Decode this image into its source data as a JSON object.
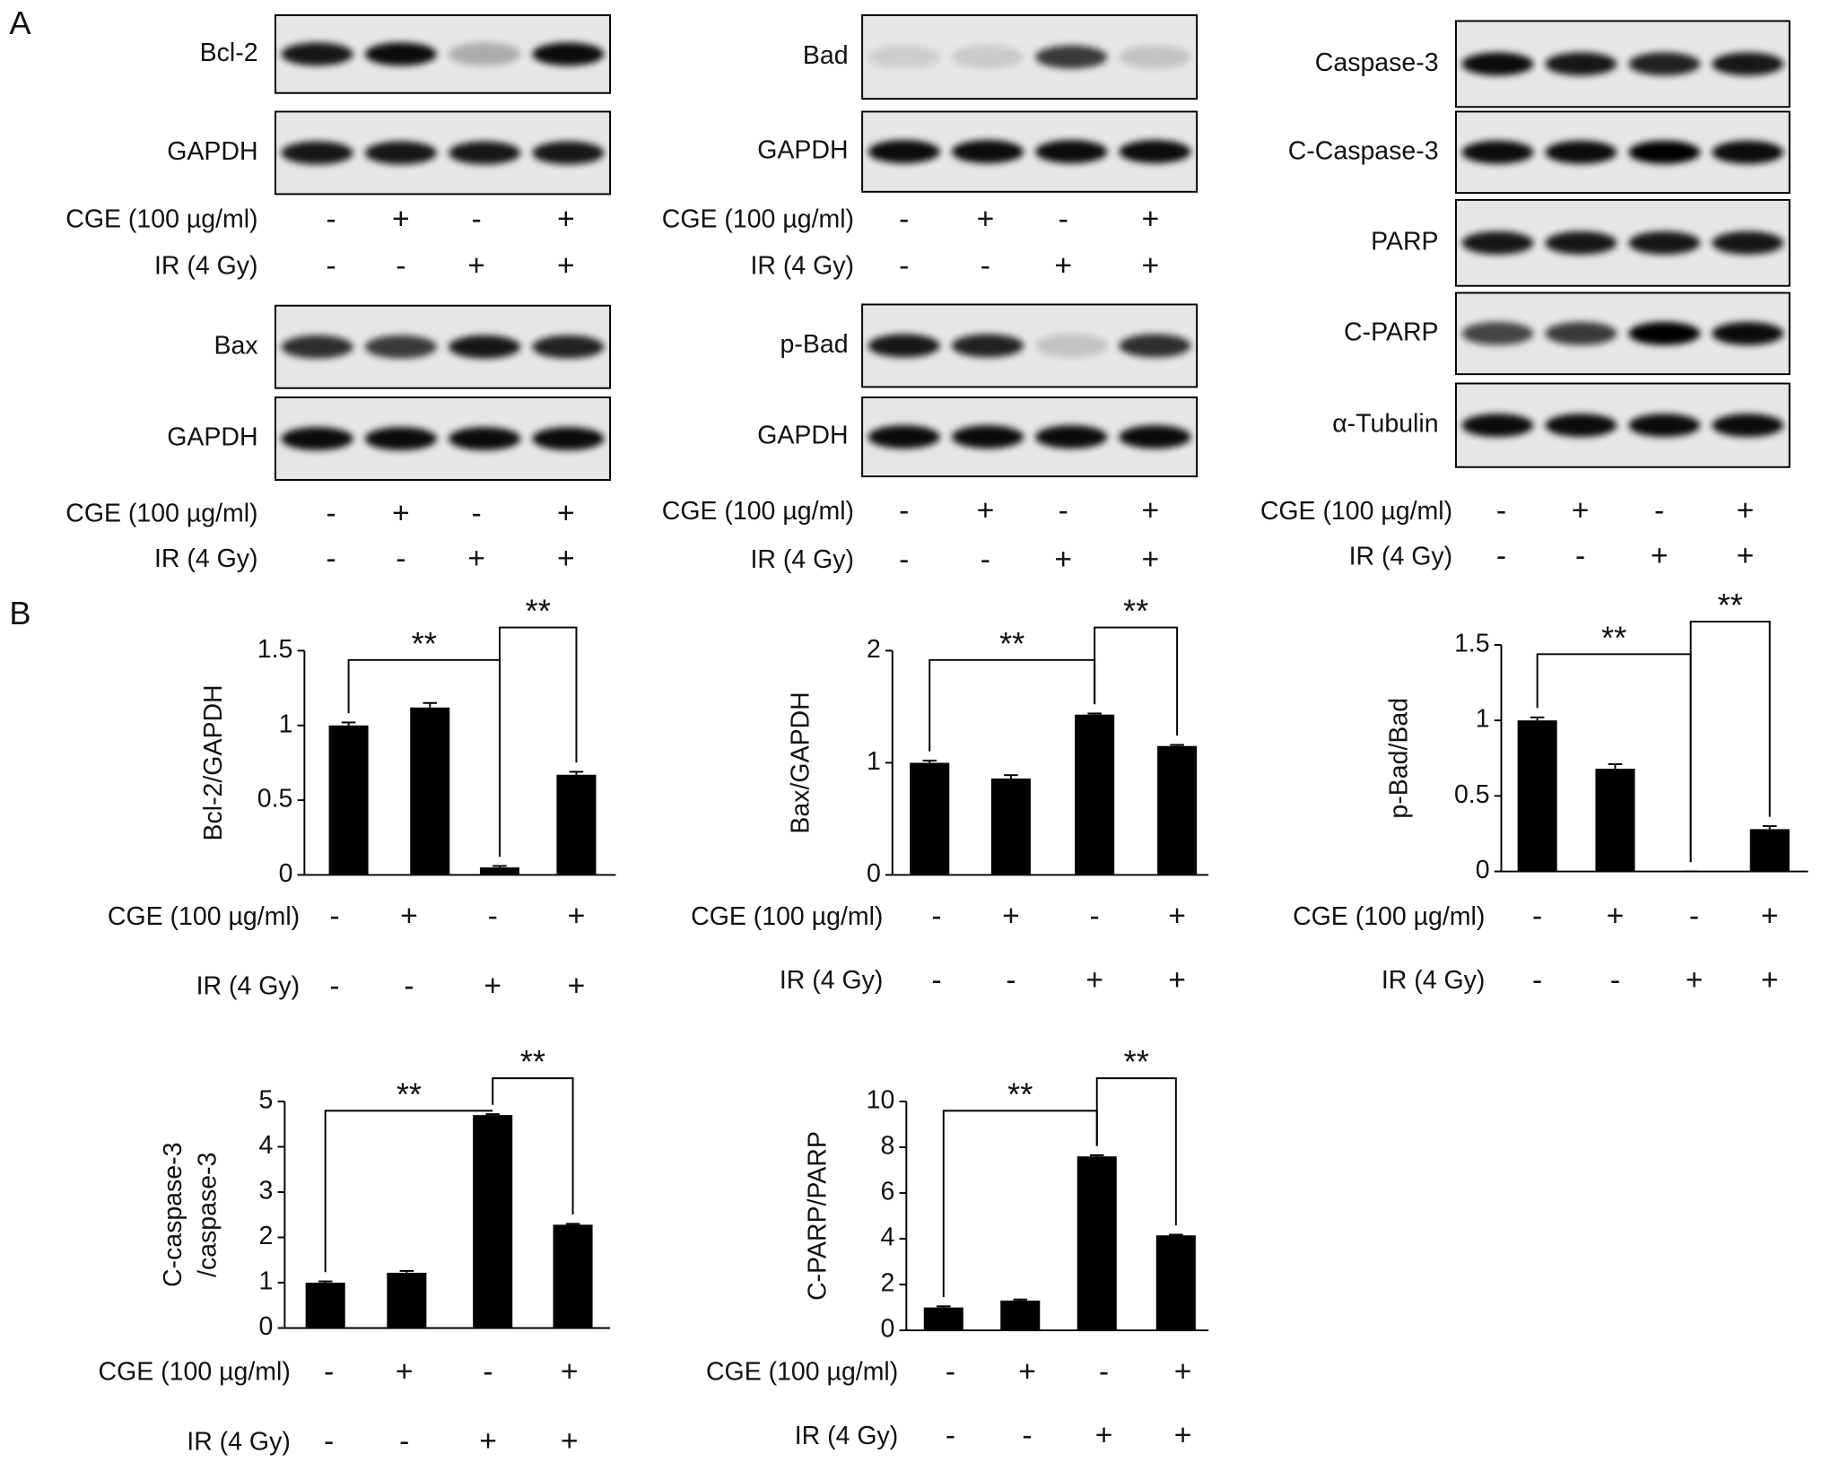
{
  "panel_labels": [
    "A",
    "B"
  ],
  "blot_groups": [
    {
      "bands": [
        "Bcl-2",
        "GAPDH"
      ],
      "treatments": [
        {
          "label": "CGE (100 µg/ml)",
          "signs": [
            "-",
            "+",
            "-",
            "+"
          ]
        },
        {
          "label": "IR (4 Gy)",
          "signs": [
            "-",
            "-",
            "+",
            "+"
          ]
        }
      ]
    },
    {
      "bands": [
        "Bax",
        "GAPDH"
      ],
      "treatments": [
        {
          "label": "CGE (100 µg/ml)",
          "signs": [
            "-",
            "+",
            "-",
            "+"
          ]
        },
        {
          "label": "IR (4 Gy)",
          "signs": [
            "-",
            "-",
            "+",
            "+"
          ]
        }
      ]
    },
    {
      "bands": [
        "Bad",
        "GAPDH"
      ],
      "treatments": [
        {
          "label": "CGE (100 µg/ml)",
          "signs": [
            "-",
            "+",
            "-",
            "+"
          ]
        },
        {
          "label": "IR (4 Gy)",
          "signs": [
            "-",
            "-",
            "+",
            "+"
          ]
        }
      ]
    },
    {
      "bands": [
        "p-Bad",
        "GAPDH"
      ],
      "treatments": [
        {
          "label": "CGE (100 µg/ml)",
          "signs": [
            "-",
            "+",
            "-",
            "+"
          ]
        },
        {
          "label": "IR (4 Gy)",
          "signs": [
            "-",
            "-",
            "+",
            "+"
          ]
        }
      ]
    },
    {
      "bands": [
        "Caspase-3",
        "C-Caspase-3",
        "PARP",
        "C-PARP",
        "α-Tubulin"
      ],
      "treatments": [
        {
          "label": "CGE (100 µg/ml)",
          "signs": [
            "-",
            "+",
            "-",
            "+"
          ]
        },
        {
          "label": "IR (4 Gy)",
          "signs": [
            "-",
            "-",
            "+",
            "+"
          ]
        }
      ]
    }
  ],
  "chart_data": [
    {
      "type": "bar",
      "y_label": "Bcl-2/GAPDH",
      "values": [
        1.0,
        1.12,
        0.05,
        0.67
      ],
      "errors": [
        0.02,
        0.03,
        0.01,
        0.02
      ],
      "color": "#000000",
      "ylim": [
        0,
        1.5
      ],
      "yticks": [
        0,
        0.5,
        1,
        1.5
      ],
      "annotations": [
        "**",
        "**"
      ],
      "treatments": [
        {
          "label": "CGE (100 µg/ml)",
          "signs": [
            "-",
            "+",
            "-",
            "+"
          ]
        },
        {
          "label": "IR (4 Gy)",
          "signs": [
            "-",
            "-",
            "+",
            "+"
          ]
        }
      ]
    },
    {
      "type": "bar",
      "y_label": "Bax/GAPDH",
      "values": [
        1.0,
        0.86,
        1.43,
        1.15
      ],
      "errors": [
        0.02,
        0.03,
        0.01,
        0.01
      ],
      "color": "#000000",
      "ylim": [
        0,
        2
      ],
      "yticks": [
        0,
        1,
        2
      ],
      "annotations": [
        "**",
        "**"
      ],
      "treatments": [
        {
          "label": "CGE (100 µg/ml)",
          "signs": [
            "-",
            "+",
            "-",
            "+"
          ]
        },
        {
          "label": "IR (4 Gy)",
          "signs": [
            "-",
            "-",
            "+",
            "+"
          ]
        }
      ]
    },
    {
      "type": "bar",
      "y_label": "p-Bad/Bad",
      "values": [
        1.0,
        0.68,
        0,
        0.28
      ],
      "errors": [
        0.02,
        0.03,
        0,
        0.02
      ],
      "color": "#000000",
      "ylim": [
        0,
        1.5
      ],
      "yticks": [
        0,
        0.5,
        1,
        1.5
      ],
      "annotations": [
        "**",
        "**"
      ],
      "treatments": [
        {
          "label": "CGE (100 µg/ml)",
          "signs": [
            "-",
            "+",
            "-",
            "+"
          ]
        },
        {
          "label": "IR (4 Gy)",
          "signs": [
            "-",
            "-",
            "+",
            "+"
          ]
        }
      ]
    },
    {
      "type": "bar",
      "y_label": [
        "C-caspase-3",
        "/caspase-3"
      ],
      "values": [
        1.0,
        1.22,
        4.7,
        2.28
      ],
      "errors": [
        0.03,
        0.04,
        0.02,
        0.02
      ],
      "color": "#000000",
      "ylim": [
        0,
        5
      ],
      "yticks": [
        0,
        1,
        2,
        3,
        4,
        5
      ],
      "annotations": [
        "**",
        "**"
      ],
      "treatments": [
        {
          "label": "CGE (100 µg/ml)",
          "signs": [
            "-",
            "+",
            "-",
            "+"
          ]
        },
        {
          "label": "IR (4 Gy)",
          "signs": [
            "-",
            "-",
            "+",
            "+"
          ]
        }
      ]
    },
    {
      "type": "bar",
      "y_label": "C-PARP/PARP",
      "values": [
        1.0,
        1.3,
        7.6,
        4.15
      ],
      "errors": [
        0.05,
        0.05,
        0.05,
        0.03
      ],
      "color": "#000000",
      "ylim": [
        0,
        10
      ],
      "yticks": [
        0,
        2,
        4,
        6,
        8,
        10
      ],
      "annotations": [
        "**",
        "**"
      ],
      "treatments": [
        {
          "label": "CGE (100 µg/ml)",
          "signs": [
            "-",
            "+",
            "-",
            "+"
          ]
        },
        {
          "label": "IR (4 Gy)",
          "signs": [
            "-",
            "-",
            "+",
            "+"
          ]
        }
      ]
    }
  ]
}
